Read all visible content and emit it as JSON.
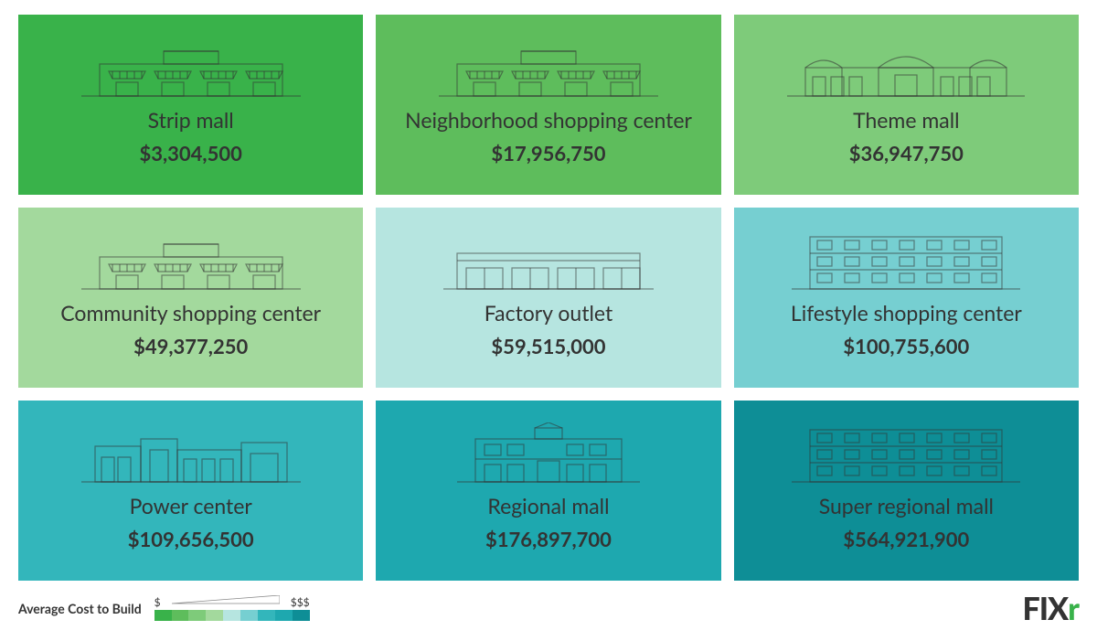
{
  "cards": [
    {
      "title": "Strip mall",
      "cost": "$3,304,500",
      "bg": "#39b24a",
      "icon": "strip"
    },
    {
      "title": "Neighborhood shopping center",
      "cost": "$17,956,750",
      "bg": "#5ebd5c",
      "icon": "strip"
    },
    {
      "title": "Theme mall",
      "cost": "$36,947,750",
      "bg": "#7ecb7a",
      "icon": "theme"
    },
    {
      "title": "Community shopping center",
      "cost": "$49,377,250",
      "bg": "#a3d99d",
      "icon": "strip"
    },
    {
      "title": "Factory outlet",
      "cost": "$59,515,000",
      "bg": "#b6e5e0",
      "icon": "outlet"
    },
    {
      "title": "Lifestyle shopping center",
      "cost": "$100,755,600",
      "bg": "#76cfd1",
      "icon": "multi"
    },
    {
      "title": "Power center",
      "cost": "$109,656,500",
      "bg": "#33b6bb",
      "icon": "power"
    },
    {
      "title": "Regional mall",
      "cost": "$176,897,700",
      "bg": "#1ea8af",
      "icon": "regional"
    },
    {
      "title": "Super regional mall",
      "cost": "$564,921,900",
      "bg": "#0e8e96",
      "icon": "multi"
    }
  ],
  "legend": {
    "label": "Average Cost to Build",
    "low": "$",
    "high": "$$$",
    "colors": [
      "#39b24a",
      "#5ebd5c",
      "#7ecb7a",
      "#a3d99d",
      "#b6e5e0",
      "#76cfd1",
      "#33b6bb",
      "#1ea8af",
      "#0e8e96"
    ]
  },
  "brand": {
    "text": "FIX",
    "accent": "r"
  },
  "iconStroke": "#333333",
  "iconStrokeOpacity": 0.55,
  "typography": {
    "title_size": 23,
    "cost_size": 22,
    "title_weight": 400,
    "cost_weight": 700
  }
}
